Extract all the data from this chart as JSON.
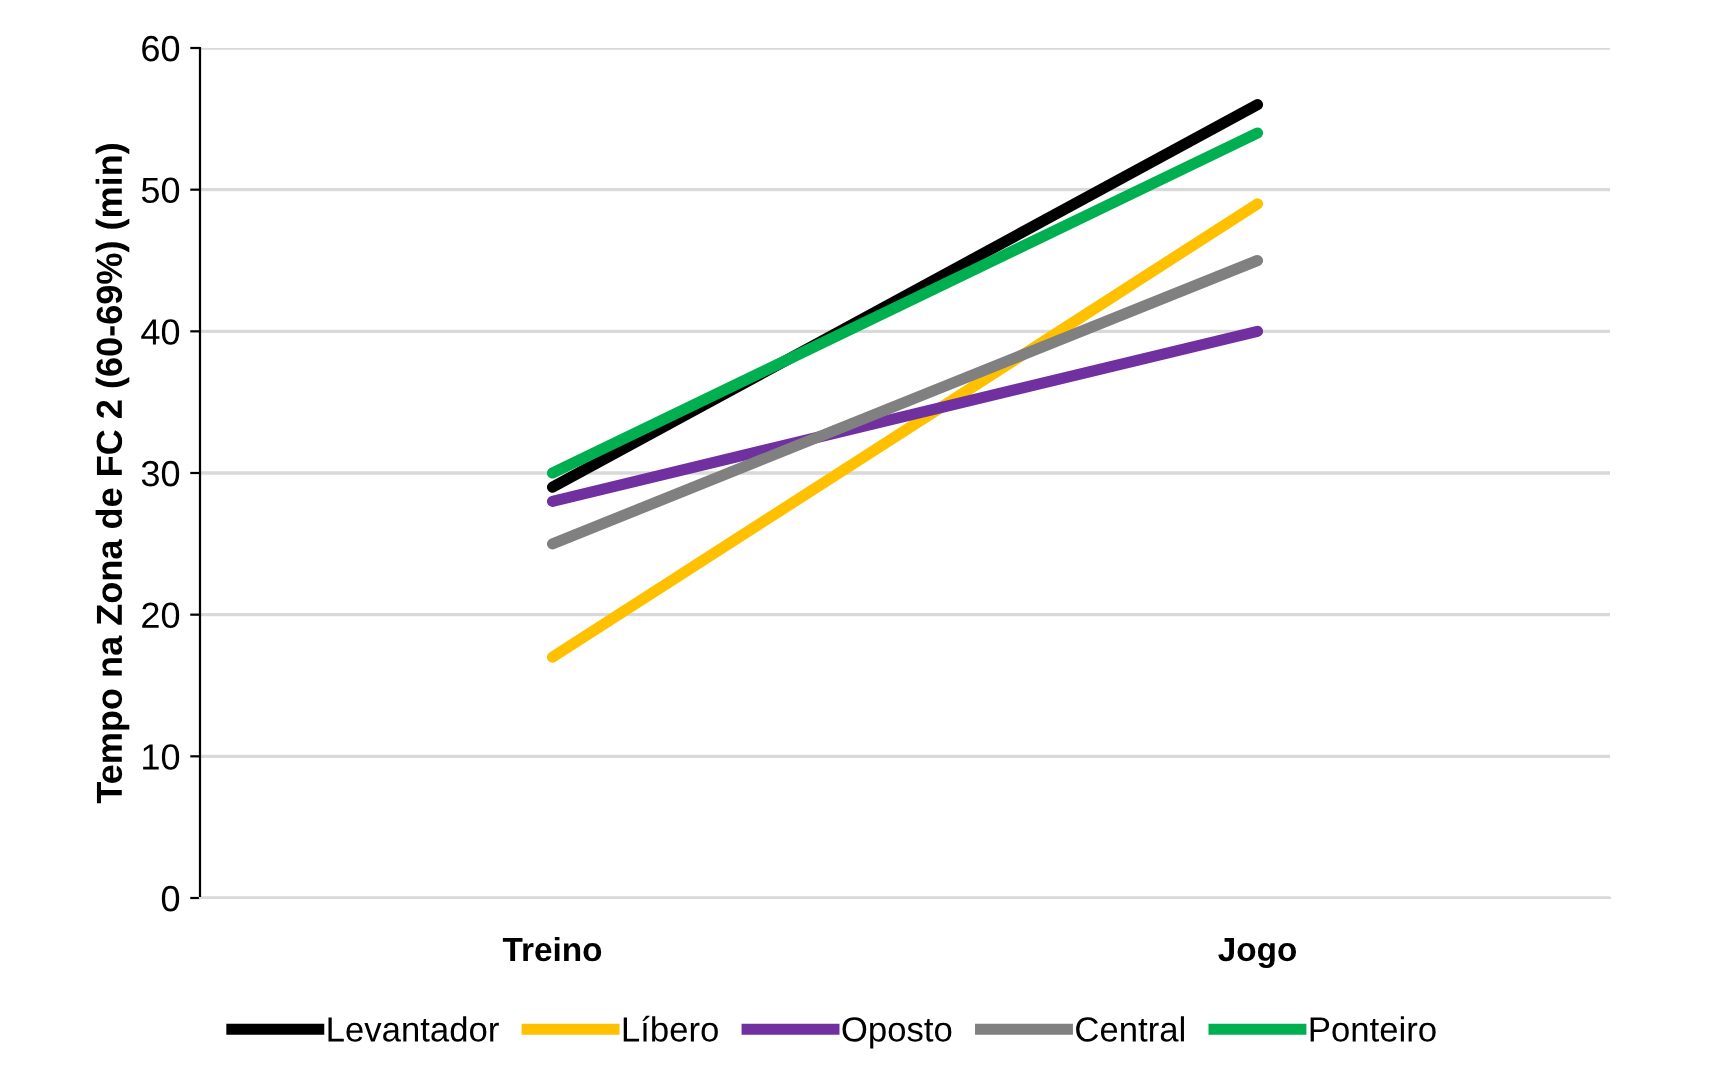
{
  "chart_data": {
    "type": "line",
    "ylabel": "Tempo na Zona de FC 2 (60-69%) (min)",
    "categories": [
      "Treino",
      "Jogo"
    ],
    "series": [
      {
        "name": "Levantador",
        "color": "#000000",
        "values": [
          29,
          56
        ]
      },
      {
        "name": "Líbero",
        "color": "#ffc000",
        "values": [
          17,
          49
        ]
      },
      {
        "name": "Oposto",
        "color": "#7030a0",
        "values": [
          28,
          40
        ]
      },
      {
        "name": "Central",
        "color": "#808080",
        "values": [
          25,
          45
        ]
      },
      {
        "name": "Ponteiro",
        "color": "#00b050",
        "values": [
          30,
          54
        ]
      }
    ],
    "ylim": [
      0,
      60
    ],
    "yticks": [
      0,
      10,
      20,
      30,
      40,
      50,
      60
    ],
    "grid": "y",
    "legend": "bottom",
    "marker": "none",
    "line_style": "solid"
  }
}
